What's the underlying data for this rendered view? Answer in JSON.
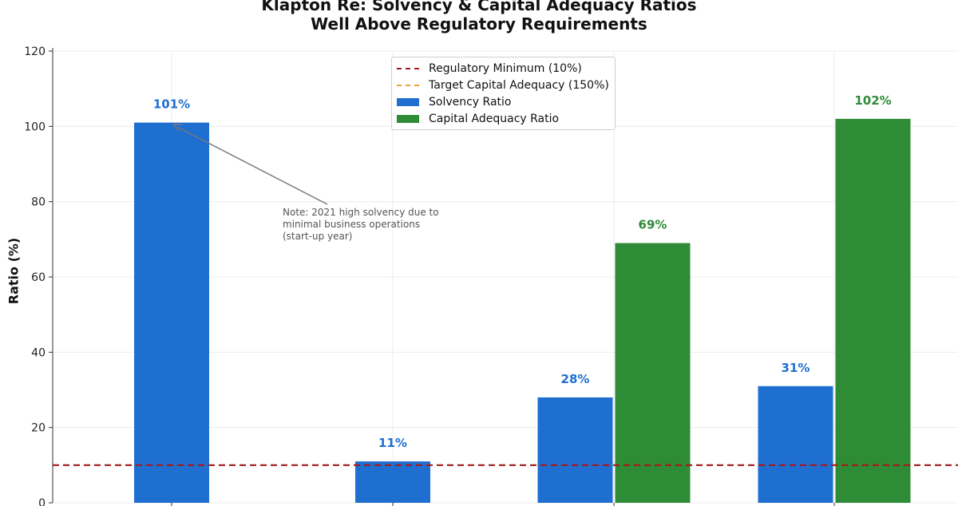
{
  "chart_data": {
    "type": "bar",
    "title": "Klapton Re: Solvency & Capital Adequacy Ratios",
    "subtitle": "Well Above Regulatory Requirements",
    "xlabel": "",
    "ylabel": "Ratio (%)",
    "ylim": [
      0,
      120
    ],
    "yticks": [
      0,
      20,
      40,
      60,
      80,
      100,
      120
    ],
    "grid": true,
    "legend_position": "top-center",
    "categories": [
      "",
      "",
      "",
      ""
    ],
    "series": [
      {
        "name": "Solvency Ratio",
        "color": "#1f6fd1",
        "values": [
          101,
          11,
          28,
          31
        ],
        "labels": [
          "101%",
          "11%",
          "28%",
          "31%"
        ]
      },
      {
        "name": "Capital Adequacy Ratio",
        "color": "#2e8b36",
        "values": [
          null,
          null,
          69,
          102
        ],
        "labels": [
          "",
          "",
          "69%",
          "102%"
        ]
      }
    ],
    "reference_lines": [
      {
        "name": "Regulatory Minimum (10%)",
        "value": 10,
        "color": "#a31a1a",
        "style": "dashed",
        "visible": true
      },
      {
        "name": "Target Capital Adequacy (150%)",
        "value": 150,
        "color": "#e8a33a",
        "style": "dashed",
        "visible": false
      }
    ],
    "annotation": {
      "text": "Note: 2021 high solvency due to\nminimal business operations\n(start-up year)",
      "points_to_series": 0,
      "points_to_index": 0
    }
  }
}
